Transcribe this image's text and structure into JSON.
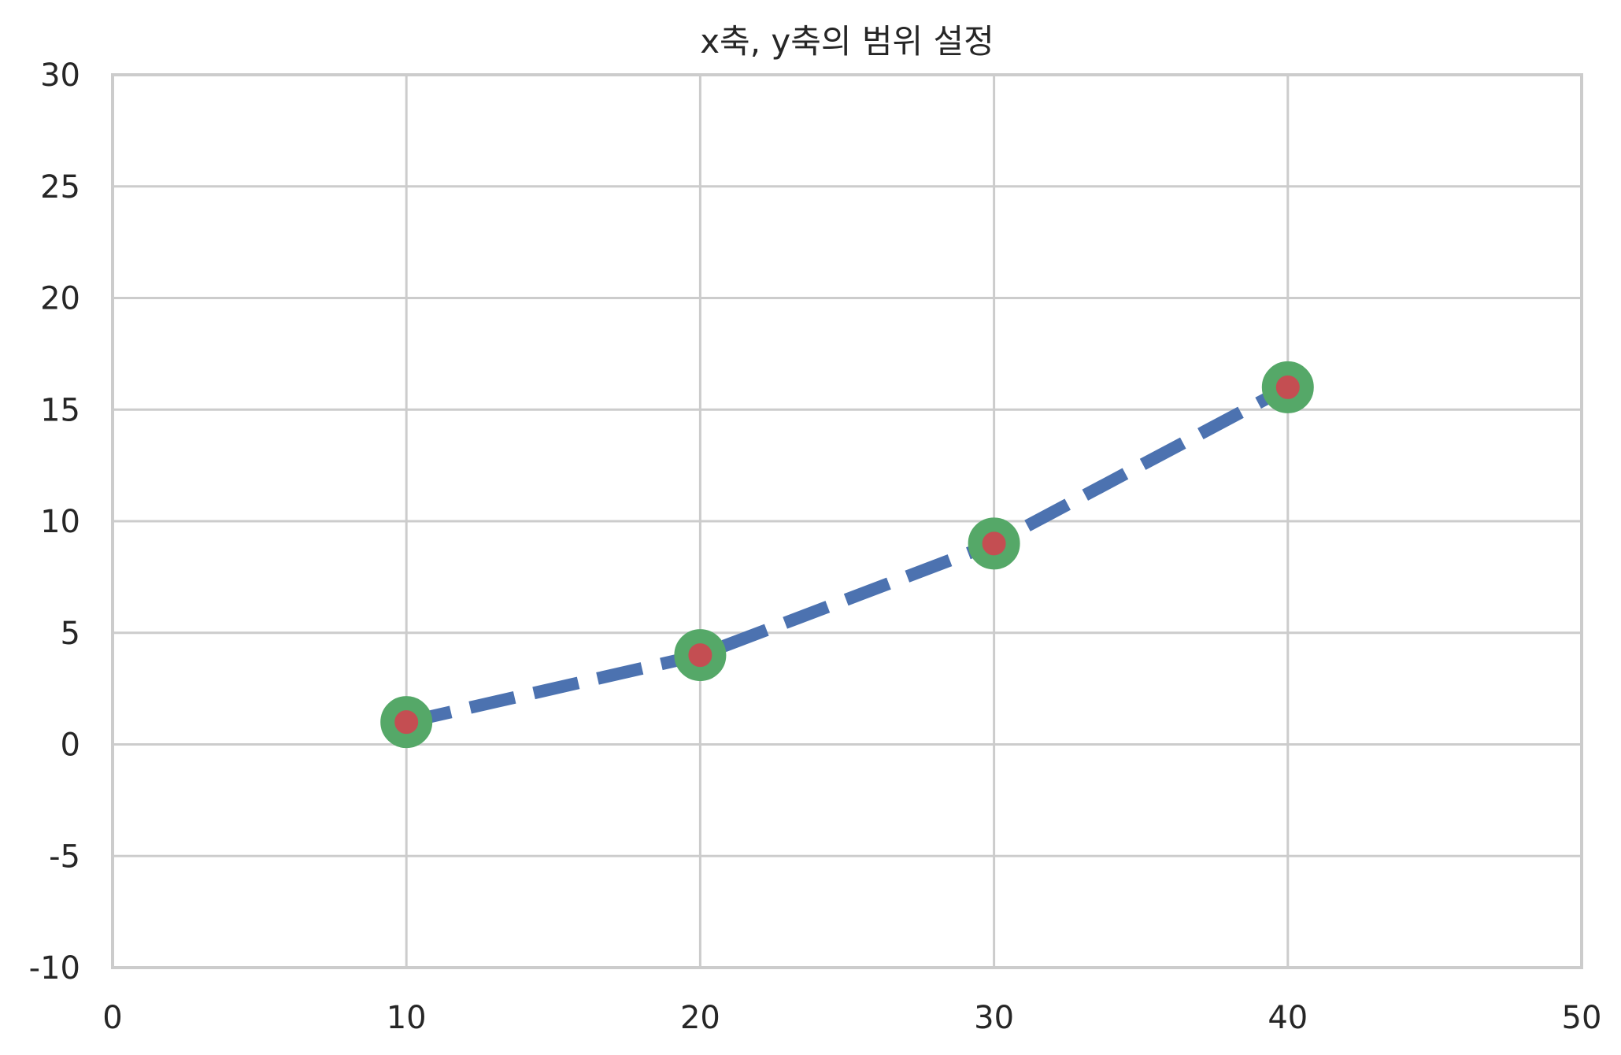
{
  "chart_data": {
    "type": "line",
    "title": "x축, y축의 범위 설정",
    "xlabel": "",
    "ylabel": "",
    "xlim": [
      0,
      50
    ],
    "ylim": [
      -10,
      30
    ],
    "xticks": [
      "0",
      "10",
      "20",
      "30",
      "40",
      "50"
    ],
    "yticks": [
      "-10",
      "-5",
      "0",
      "5",
      "10",
      "15",
      "20",
      "25",
      "30"
    ],
    "grid": true,
    "series": [
      {
        "x": [
          10,
          20,
          30,
          40
        ],
        "y": [
          1,
          4,
          9,
          16
        ],
        "line_color": "#4C72B0",
        "line_style": "dashed",
        "marker": "circle",
        "marker_face_color": "#C44E52",
        "marker_edge_color": "#55A868"
      }
    ]
  }
}
